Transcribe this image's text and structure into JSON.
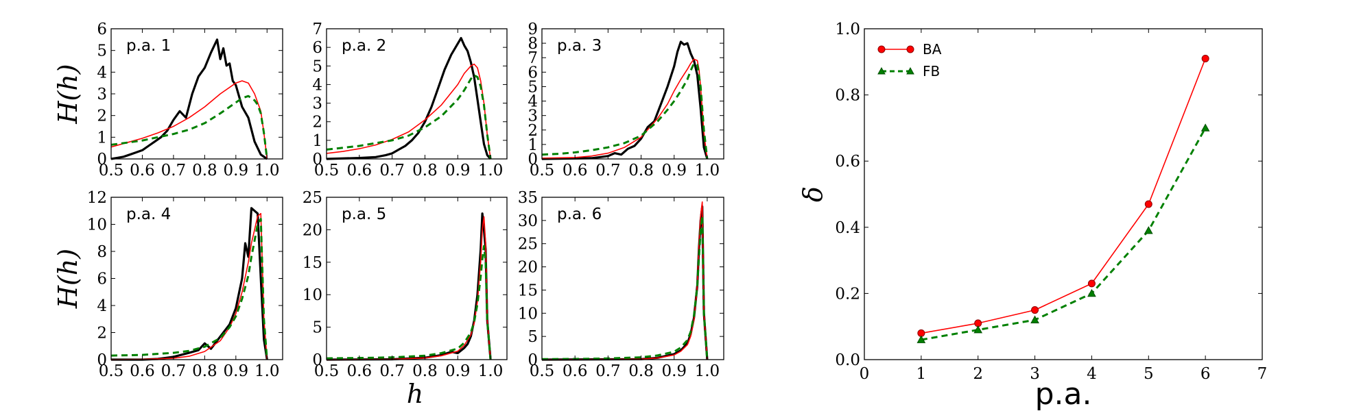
{
  "chart_data": [
    {
      "type": "line",
      "label": "p.a. 1",
      "xlim": [
        0.5,
        1.05
      ],
      "ylim": [
        0,
        6
      ],
      "xticks": [
        "0.5",
        "0.6",
        "0.7",
        "0.8",
        "0.9",
        "1.0"
      ],
      "yticks": [
        "0",
        "1",
        "2",
        "3",
        "4",
        "5",
        "6"
      ],
      "ylabel": "H(h)",
      "series": [
        {
          "color": "#000000",
          "style": "solid-thick",
          "x": [
            0.5,
            0.52,
            0.54,
            0.56,
            0.58,
            0.6,
            0.62,
            0.64,
            0.66,
            0.68,
            0.7,
            0.72,
            0.74,
            0.76,
            0.78,
            0.8,
            0.82,
            0.84,
            0.85,
            0.86,
            0.87,
            0.88,
            0.89,
            0.9,
            0.92,
            0.94,
            0.96,
            0.98,
            1.0
          ],
          "y": [
            0.0,
            0.05,
            0.1,
            0.2,
            0.3,
            0.4,
            0.6,
            0.8,
            1.0,
            1.3,
            1.8,
            2.2,
            1.9,
            3.0,
            3.8,
            4.2,
            4.9,
            5.5,
            4.6,
            5.1,
            4.3,
            4.4,
            3.6,
            3.4,
            2.4,
            1.9,
            0.8,
            0.2,
            0.0
          ]
        },
        {
          "color": "#ff0000",
          "style": "solid-thin",
          "x": [
            0.5,
            0.55,
            0.6,
            0.65,
            0.7,
            0.75,
            0.8,
            0.85,
            0.9,
            0.92,
            0.94,
            0.96,
            0.98,
            0.99,
            1.0
          ],
          "y": [
            0.55,
            0.75,
            0.95,
            1.2,
            1.5,
            1.9,
            2.4,
            3.0,
            3.5,
            3.6,
            3.5,
            3.0,
            2.2,
            1.2,
            0.0
          ]
        },
        {
          "color": "#008000",
          "style": "dashed",
          "x": [
            0.5,
            0.55,
            0.6,
            0.65,
            0.7,
            0.75,
            0.8,
            0.85,
            0.9,
            0.92,
            0.94,
            0.96,
            0.97,
            0.98,
            0.99,
            1.0
          ],
          "y": [
            0.65,
            0.75,
            0.85,
            1.0,
            1.15,
            1.35,
            1.65,
            2.1,
            2.6,
            2.8,
            2.9,
            2.7,
            2.5,
            2.1,
            1.2,
            0.0
          ]
        }
      ]
    },
    {
      "type": "line",
      "label": "p.a. 2",
      "xlim": [
        0.5,
        1.05
      ],
      "ylim": [
        0,
        7
      ],
      "xticks": [
        "0.5",
        "0.6",
        "0.7",
        "0.8",
        "0.9",
        "1.0"
      ],
      "yticks": [
        "0",
        "1",
        "2",
        "3",
        "4",
        "5",
        "6",
        "7"
      ],
      "series": [
        {
          "color": "#000000",
          "style": "solid-thick",
          "x": [
            0.5,
            0.6,
            0.65,
            0.68,
            0.7,
            0.72,
            0.74,
            0.76,
            0.78,
            0.8,
            0.82,
            0.84,
            0.86,
            0.88,
            0.9,
            0.91,
            0.92,
            0.93,
            0.94,
            0.95,
            0.96,
            0.97,
            0.98,
            0.99,
            1.0
          ],
          "y": [
            0.0,
            0.05,
            0.1,
            0.2,
            0.3,
            0.5,
            0.7,
            1.0,
            1.4,
            2.0,
            2.8,
            3.8,
            4.8,
            5.6,
            6.2,
            6.5,
            6.1,
            5.8,
            5.2,
            4.4,
            3.2,
            2.0,
            0.8,
            0.2,
            0.0
          ]
        },
        {
          "color": "#ff0000",
          "style": "solid-thin",
          "x": [
            0.5,
            0.55,
            0.6,
            0.65,
            0.7,
            0.75,
            0.8,
            0.85,
            0.9,
            0.92,
            0.94,
            0.95,
            0.96,
            0.97,
            0.98,
            0.99,
            1.0
          ],
          "y": [
            0.3,
            0.4,
            0.55,
            0.75,
            1.05,
            1.45,
            2.1,
            2.9,
            4.0,
            4.6,
            5.0,
            5.1,
            4.9,
            4.2,
            3.0,
            1.3,
            0.0
          ]
        },
        {
          "color": "#008000",
          "style": "dashed",
          "x": [
            0.5,
            0.55,
            0.6,
            0.65,
            0.7,
            0.75,
            0.8,
            0.85,
            0.9,
            0.92,
            0.94,
            0.95,
            0.96,
            0.97,
            0.98,
            0.99,
            1.0
          ],
          "y": [
            0.5,
            0.6,
            0.7,
            0.85,
            1.0,
            1.25,
            1.7,
            2.3,
            3.2,
            3.7,
            4.3,
            4.5,
            4.4,
            3.9,
            2.9,
            1.3,
            0.0
          ]
        }
      ]
    },
    {
      "type": "line",
      "label": "p.a. 3",
      "xlim": [
        0.5,
        1.05
      ],
      "ylim": [
        0,
        9
      ],
      "xticks": [
        "0.5",
        "0.6",
        "0.7",
        "0.8",
        "0.9",
        "1.0"
      ],
      "yticks": [
        "0",
        "1",
        "2",
        "3",
        "4",
        "5",
        "6",
        "7",
        "8",
        "9"
      ],
      "series": [
        {
          "color": "#000000",
          "style": "solid-thick",
          "x": [
            0.5,
            0.65,
            0.7,
            0.72,
            0.74,
            0.76,
            0.78,
            0.8,
            0.82,
            0.84,
            0.86,
            0.88,
            0.9,
            0.91,
            0.92,
            0.93,
            0.94,
            0.95,
            0.96,
            0.97,
            0.98,
            0.99,
            1.0
          ],
          "y": [
            0.0,
            0.05,
            0.2,
            0.4,
            0.3,
            0.7,
            0.9,
            1.4,
            2.2,
            2.6,
            3.8,
            5.0,
            6.4,
            7.4,
            8.1,
            7.9,
            8.0,
            7.3,
            6.8,
            5.8,
            3.5,
            0.8,
            0.0
          ]
        },
        {
          "color": "#ff0000",
          "style": "solid-thin",
          "x": [
            0.5,
            0.6,
            0.65,
            0.7,
            0.75,
            0.8,
            0.85,
            0.88,
            0.9,
            0.92,
            0.94,
            0.95,
            0.96,
            0.97,
            0.975,
            0.98,
            0.99,
            1.0
          ],
          "y": [
            0.05,
            0.1,
            0.2,
            0.4,
            0.8,
            1.5,
            2.8,
            3.8,
            4.7,
            5.5,
            6.2,
            6.6,
            6.9,
            6.8,
            6.2,
            5.0,
            1.8,
            0.0
          ]
        },
        {
          "color": "#008000",
          "style": "dashed",
          "x": [
            0.5,
            0.55,
            0.6,
            0.65,
            0.7,
            0.75,
            0.8,
            0.85,
            0.88,
            0.9,
            0.92,
            0.94,
            0.95,
            0.96,
            0.97,
            0.98,
            0.99,
            1.0
          ],
          "y": [
            0.3,
            0.35,
            0.45,
            0.6,
            0.8,
            1.1,
            1.6,
            2.6,
            3.4,
            4.0,
            4.7,
            5.5,
            6.1,
            6.6,
            6.5,
            5.0,
            2.0,
            0.0
          ]
        }
      ]
    },
    {
      "type": "line",
      "label": "p.a. 4",
      "xlim": [
        0.5,
        1.05
      ],
      "ylim": [
        0,
        12
      ],
      "xticks": [
        "0.5",
        "0.6",
        "0.7",
        "0.8",
        "0.9",
        "1.0"
      ],
      "yticks": [
        "0",
        "2",
        "4",
        "6",
        "8",
        "10",
        "12"
      ],
      "ylabel": "H(h)",
      "series": [
        {
          "color": "#000000",
          "style": "solid-thick",
          "x": [
            0.5,
            0.6,
            0.65,
            0.7,
            0.75,
            0.78,
            0.8,
            0.82,
            0.84,
            0.86,
            0.88,
            0.9,
            0.92,
            0.93,
            0.94,
            0.95,
            0.96,
            0.97,
            0.98,
            0.99,
            1.0
          ],
          "y": [
            0.0,
            0.0,
            0.05,
            0.2,
            0.5,
            0.7,
            1.2,
            0.8,
            1.4,
            2.0,
            2.6,
            3.8,
            6.0,
            8.6,
            7.6,
            11.2,
            11.0,
            10.8,
            6.0,
            1.5,
            0.0
          ]
        },
        {
          "color": "#ff0000",
          "style": "solid-thin",
          "x": [
            0.5,
            0.6,
            0.7,
            0.75,
            0.8,
            0.85,
            0.88,
            0.9,
            0.92,
            0.94,
            0.95,
            0.96,
            0.97,
            0.98,
            0.99,
            1.0
          ],
          "y": [
            0.0,
            0.02,
            0.1,
            0.25,
            0.6,
            1.4,
            2.4,
            3.4,
            5.0,
            7.2,
            8.6,
            9.6,
            10.6,
            10.8,
            3.0,
            0.0
          ]
        },
        {
          "color": "#008000",
          "style": "dashed",
          "x": [
            0.5,
            0.6,
            0.7,
            0.75,
            0.8,
            0.85,
            0.88,
            0.9,
            0.92,
            0.94,
            0.95,
            0.96,
            0.97,
            0.98,
            0.99,
            1.0
          ],
          "y": [
            0.3,
            0.35,
            0.5,
            0.65,
            0.95,
            1.6,
            2.4,
            3.2,
            4.5,
            6.2,
            7.6,
            8.8,
            10.0,
            10.4,
            3.0,
            0.0
          ]
        }
      ]
    },
    {
      "type": "line",
      "label": "p.a. 5",
      "xlim": [
        0.5,
        1.05
      ],
      "ylim": [
        0,
        25
      ],
      "xticks": [
        "0.5",
        "0.6",
        "0.7",
        "0.8",
        "0.9",
        "1.0"
      ],
      "yticks": [
        "0",
        "5",
        "10",
        "15",
        "20",
        "25"
      ],
      "series": [
        {
          "color": "#000000",
          "style": "solid-thick",
          "x": [
            0.5,
            0.7,
            0.8,
            0.85,
            0.88,
            0.9,
            0.92,
            0.93,
            0.94,
            0.95,
            0.96,
            0.97,
            0.975,
            0.98,
            0.985,
            0.99,
            1.0
          ],
          "y": [
            0.0,
            0.05,
            0.3,
            0.7,
            1.2,
            1.0,
            1.8,
            2.4,
            3.6,
            6.0,
            10.0,
            17.0,
            22.5,
            20.0,
            17.0,
            6.0,
            0.0
          ]
        },
        {
          "color": "#ff0000",
          "style": "solid-thin",
          "x": [
            0.5,
            0.7,
            0.8,
            0.85,
            0.9,
            0.92,
            0.94,
            0.95,
            0.96,
            0.97,
            0.975,
            0.98,
            0.985,
            0.99,
            1.0
          ],
          "y": [
            0.0,
            0.05,
            0.25,
            0.6,
            1.3,
            2.2,
            3.8,
            5.6,
            9.0,
            15.0,
            20.0,
            22.0,
            18.0,
            6.0,
            0.0
          ]
        },
        {
          "color": "#008000",
          "style": "dashed",
          "x": [
            0.5,
            0.6,
            0.7,
            0.8,
            0.85,
            0.9,
            0.92,
            0.94,
            0.95,
            0.96,
            0.97,
            0.975,
            0.98,
            0.985,
            0.99,
            1.0
          ],
          "y": [
            0.2,
            0.25,
            0.35,
            0.6,
            1.0,
            1.7,
            2.6,
            4.2,
            5.8,
            8.6,
            12.8,
            15.5,
            17.5,
            15.0,
            6.0,
            0.0
          ]
        }
      ]
    },
    {
      "type": "line",
      "label": "p.a. 6",
      "xlim": [
        0.5,
        1.05
      ],
      "ylim": [
        0,
        35
      ],
      "xticks": [
        "0.5",
        "0.6",
        "0.7",
        "0.8",
        "0.9",
        "1.0"
      ],
      "yticks": [
        "0",
        "5",
        "10",
        "15",
        "20",
        "25",
        "30",
        "35"
      ],
      "series": [
        {
          "color": "#000000",
          "style": "solid-thick",
          "x": [
            0.5,
            0.8,
            0.85,
            0.9,
            0.92,
            0.94,
            0.95,
            0.96,
            0.97,
            0.975,
            0.98,
            0.985,
            0.99,
            1.0
          ],
          "y": [
            0.0,
            0.1,
            0.4,
            1.2,
            2.0,
            3.5,
            5.5,
            9.0,
            16.0,
            24.0,
            30.0,
            33.0,
            10.0,
            0.0
          ]
        },
        {
          "color": "#ff0000",
          "style": "solid-thin",
          "x": [
            0.5,
            0.8,
            0.85,
            0.9,
            0.92,
            0.94,
            0.95,
            0.96,
            0.97,
            0.975,
            0.98,
            0.985,
            0.99,
            1.0
          ],
          "y": [
            0.0,
            0.1,
            0.35,
            1.0,
            1.8,
            3.2,
            5.0,
            8.5,
            16.0,
            25.0,
            31.0,
            34.0,
            10.0,
            0.0
          ]
        },
        {
          "color": "#008000",
          "style": "dashed",
          "x": [
            0.5,
            0.6,
            0.7,
            0.8,
            0.85,
            0.9,
            0.92,
            0.94,
            0.95,
            0.96,
            0.97,
            0.975,
            0.98,
            0.985,
            0.99,
            1.0
          ],
          "y": [
            0.1,
            0.15,
            0.25,
            0.5,
            0.9,
            1.7,
            2.6,
            4.2,
            6.0,
            9.5,
            16.0,
            22.0,
            28.0,
            31.0,
            10.0,
            0.0
          ]
        }
      ]
    },
    {
      "type": "line",
      "xlabel": "p.a.",
      "ylabel": "δ",
      "xlim": [
        0,
        7
      ],
      "ylim": [
        0,
        1.0
      ],
      "xticks": [
        "0",
        "1",
        "2",
        "3",
        "4",
        "5",
        "6",
        "7"
      ],
      "yticks": [
        "0.0",
        "0.2",
        "0.4",
        "0.6",
        "0.8",
        "1.0"
      ],
      "legend_position": "top-left",
      "series": [
        {
          "name": "BA",
          "color": "#ff0000",
          "marker": "circle",
          "style": "solid",
          "x": [
            1,
            2,
            3,
            4,
            5,
            6
          ],
          "y": [
            0.08,
            0.11,
            0.15,
            0.23,
            0.47,
            0.91
          ]
        },
        {
          "name": "FB",
          "color": "#008000",
          "marker": "triangle",
          "style": "dashed",
          "x": [
            1,
            2,
            3,
            4,
            5,
            6
          ],
          "y": [
            0.06,
            0.09,
            0.12,
            0.2,
            0.39,
            0.7
          ]
        }
      ]
    }
  ],
  "shared": {
    "small_xlabel": "h"
  }
}
